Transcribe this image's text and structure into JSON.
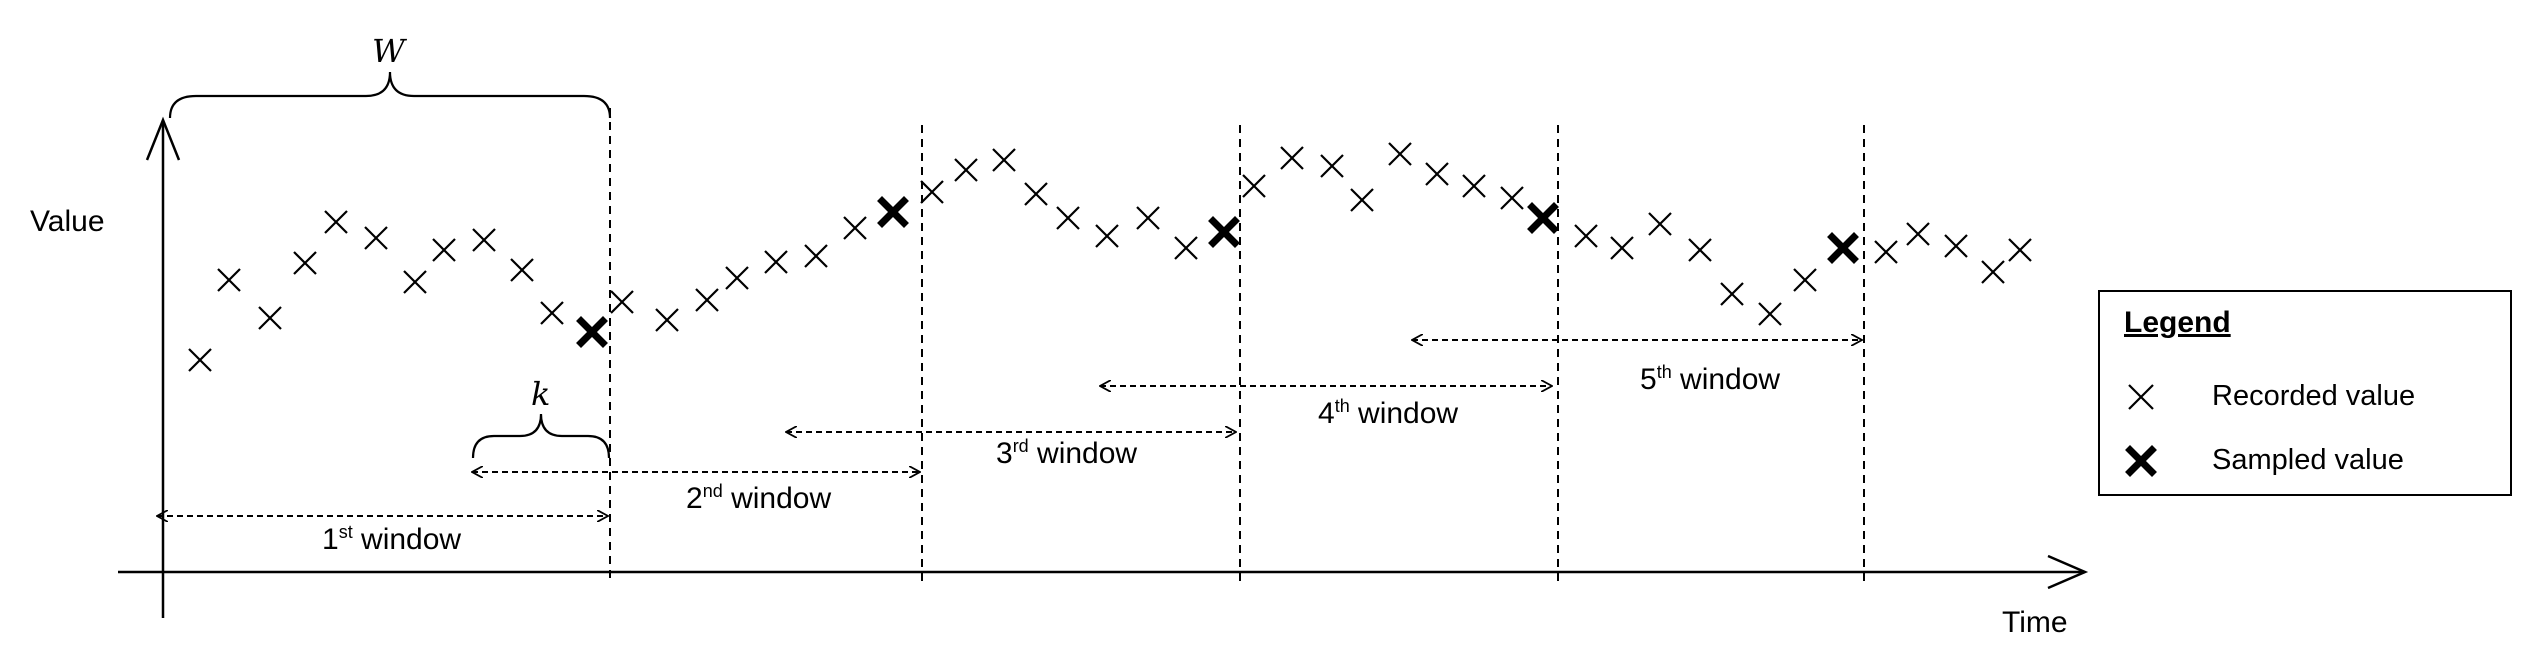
{
  "axes": {
    "y_label": "Value",
    "x_label": "Time"
  },
  "annotations": {
    "window_size_symbol": "W",
    "step_symbol": "k"
  },
  "windows": [
    {
      "num": "1",
      "suffix": "st",
      "word": "window"
    },
    {
      "num": "2",
      "suffix": "nd",
      "word": "window"
    },
    {
      "num": "3",
      "suffix": "rd",
      "word": "window"
    },
    {
      "num": "4",
      "suffix": "th",
      "word": "window"
    },
    {
      "num": "5",
      "suffix": "th",
      "word": "window"
    }
  ],
  "legend": {
    "title": "Legend",
    "items": [
      {
        "label": "Recorded value",
        "marker": "thin-x-icon"
      },
      {
        "label": "Sampled value",
        "marker": "bold-x-icon"
      }
    ]
  },
  "colors": {
    "ink": "#000000",
    "background": "#ffffff"
  }
}
